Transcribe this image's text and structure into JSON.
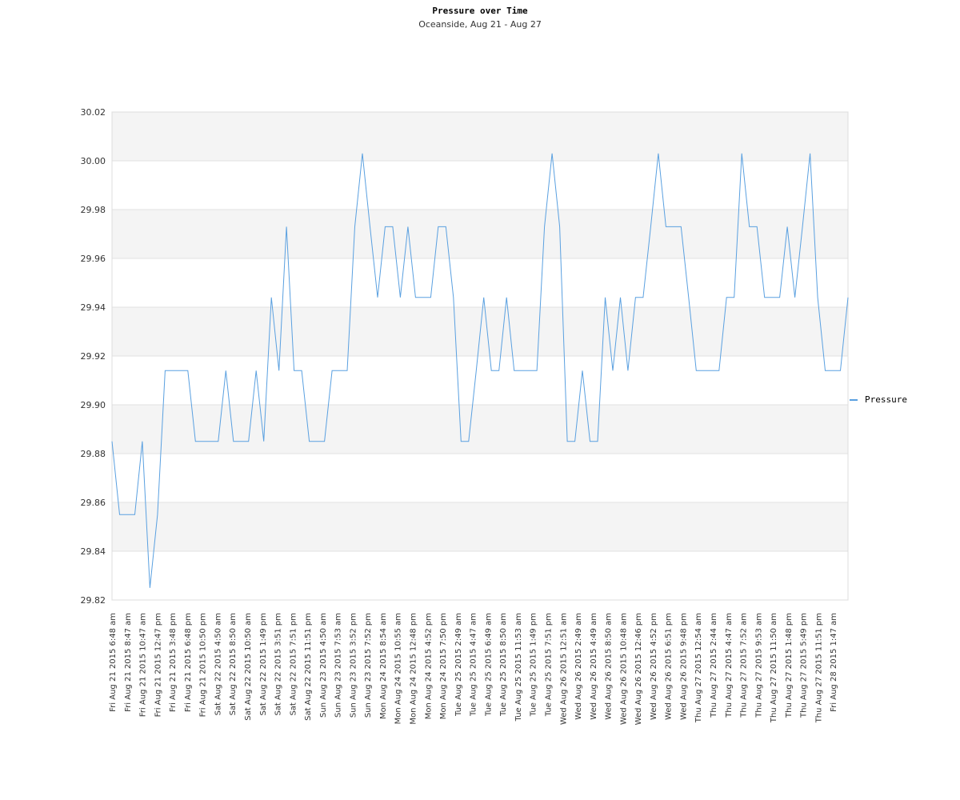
{
  "chart_data": {
    "type": "line",
    "title": "Pressure over Time",
    "subtitle": "Oceanside, Aug 21 - Aug 27",
    "xlabel": "",
    "ylabel": "",
    "ylim": [
      29.82,
      30.02
    ],
    "yticks": [
      "30.02",
      "30.00",
      "29.98",
      "29.96",
      "29.94",
      "29.92",
      "29.90",
      "29.88",
      "29.86",
      "29.84",
      "29.82"
    ],
    "grid": "alternating horizontal bands",
    "legend_position": "right",
    "x_tick_labels": [
      "Fri Aug 21 2015 6:48 am",
      "Fri Aug 21 2015 8:47 am",
      "Fri Aug 21 2015 10:47 am",
      "Fri Aug 21 2015 12:47 pm",
      "Fri Aug 21 2015 3:48 pm",
      "Fri Aug 21 2015 6:48 pm",
      "Fri Aug 21 2015 10:50 pm",
      "Sat Aug 22 2015 4:50 am",
      "Sat Aug 22 2015 8:50 am",
      "Sat Aug 22 2015 10:50 am",
      "Sat Aug 22 2015 1:49 pm",
      "Sat Aug 22 2015 3:51 pm",
      "Sat Aug 22 2015 7:51 pm",
      "Sat Aug 22 2015 11:51 pm",
      "Sun Aug 23 2015 4:50 am",
      "Sun Aug 23 2015 7:53 am",
      "Sun Aug 23 2015 3:52 pm",
      "Sun Aug 23 2015 7:52 pm",
      "Mon Aug 24 2015 8:54 am",
      "Mon Aug 24 2015 10:55 am",
      "Mon Aug 24 2015 12:48 pm",
      "Mon Aug 24 2015 4:52 pm",
      "Mon Aug 24 2015 7:50 pm",
      "Tue Aug 25 2015 2:49 am",
      "Tue Aug 25 2015 4:47 am",
      "Tue Aug 25 2015 6:49 am",
      "Tue Aug 25 2015 8:50 am",
      "Tue Aug 25 2015 11:53 am",
      "Tue Aug 25 2015 1:49 pm",
      "Tue Aug 25 2015 7:51 pm",
      "Wed Aug 26 2015 12:51 am",
      "Wed Aug 26 2015 2:49 am",
      "Wed Aug 26 2015 4:49 am",
      "Wed Aug 26 2015 8:50 am",
      "Wed Aug 26 2015 10:48 am",
      "Wed Aug 26 2015 12:46 pm",
      "Wed Aug 26 2015 4:52 pm",
      "Wed Aug 26 2015 6:51 pm",
      "Wed Aug 26 2015 9:48 pm",
      "Thu Aug 27 2015 12:54 am",
      "Thu Aug 27 2015 2:44 am",
      "Thu Aug 27 2015 4:47 am",
      "Thu Aug 27 2015 7:52 am",
      "Thu Aug 27 2015 9:53 am",
      "Thu Aug 27 2015 11:50 am",
      "Thu Aug 27 2015 1:48 pm",
      "Thu Aug 27 2015 5:49 pm",
      "Thu Aug 27 2015 11:51 pm",
      "Fri Aug 28 2015 1:47 am"
    ],
    "series": [
      {
        "name": "Pressure",
        "color": "#5aa0e0",
        "values": [
          29.885,
          29.855,
          29.855,
          29.855,
          29.885,
          29.825,
          29.855,
          29.914,
          29.914,
          29.914,
          29.914,
          29.885,
          29.885,
          29.885,
          29.885,
          29.914,
          29.885,
          29.885,
          29.885,
          29.914,
          29.885,
          29.944,
          29.914,
          29.973,
          29.914,
          29.914,
          29.885,
          29.885,
          29.885,
          29.914,
          29.914,
          29.914,
          29.973,
          30.003,
          29.973,
          29.944,
          29.973,
          29.973,
          29.944,
          29.973,
          29.944,
          29.944,
          29.944,
          29.973,
          29.973,
          29.944,
          29.885,
          29.885,
          29.914,
          29.944,
          29.914,
          29.914,
          29.944,
          29.914,
          29.914,
          29.914,
          29.914,
          29.973,
          30.003,
          29.973,
          29.885,
          29.885,
          29.914,
          29.885,
          29.885,
          29.944,
          29.914,
          29.944,
          29.914,
          29.944,
          29.944,
          29.973,
          30.003,
          29.973,
          29.973,
          29.973,
          29.944,
          29.914,
          29.914,
          29.914,
          29.914,
          29.944,
          29.944,
          30.003,
          29.973,
          29.973,
          29.944,
          29.944,
          29.944,
          29.973,
          29.944,
          29.973,
          30.003,
          29.944,
          29.914,
          29.914,
          29.914,
          29.944
        ]
      }
    ]
  }
}
